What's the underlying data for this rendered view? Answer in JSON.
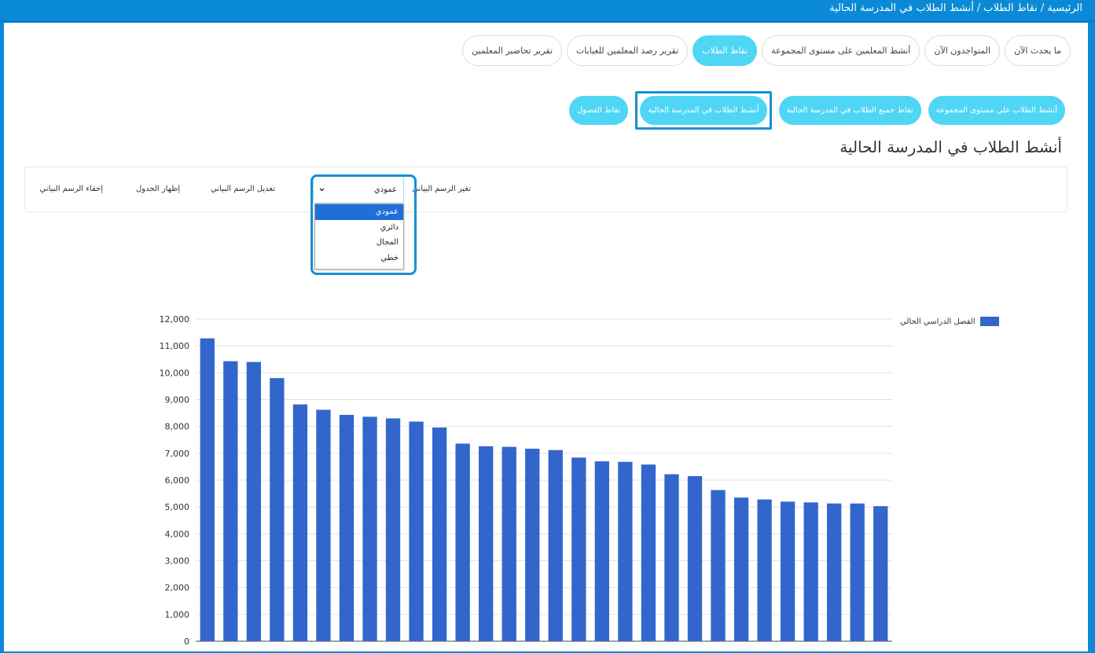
{
  "breadcrumb": {
    "home": "الرئيسية",
    "sep": "/",
    "points": "نقاط الطلاب",
    "current": "أنشط الطلاب في المدرسة الحالية"
  },
  "tabs": [
    {
      "label": "ما يحدث الآن",
      "active": false
    },
    {
      "label": "المتواجدون الآن",
      "active": false
    },
    {
      "label": "أنشط المعلمين على مستوى المجموعة",
      "active": false
    },
    {
      "label": "نقاط الطلاب",
      "active": true
    },
    {
      "label": "تقرير رصد المعلمين للغيابات",
      "active": false
    },
    {
      "label": "تقرير تحاضير المعلمين",
      "active": false
    }
  ],
  "subtabs": [
    {
      "label": "أنشط الطلاب على مستوى المجموعة",
      "highlighted": false
    },
    {
      "label": "نقاط جميع الطلاب في المدرسة الحالية",
      "highlighted": false
    },
    {
      "label": "أنشط الطلاب في المدرسة الحالية",
      "highlighted": true
    },
    {
      "label": "نقاط الفصول",
      "highlighted": false
    }
  ],
  "page_title": "أنشط الطلاب في المدرسة الحالية",
  "toolbar": {
    "change_chart_label": "تغير الرسم البياني",
    "select_value": "عمودي",
    "edit_chart_label": "تعديل الرسم البياني",
    "show_table_label": "إظهار الجدول",
    "hide_chart_label": "إخفاء الرسم البياني"
  },
  "dropdown_options": [
    "عمودي",
    "دائري",
    "المجال",
    "خطي"
  ],
  "dropdown_selected_index": 0,
  "colors": {
    "accent": "#4fd6f5",
    "frame": "#0a8ad6",
    "bar": "#3366cc",
    "selected_option": "#1f6fd6"
  },
  "chart_data": {
    "type": "bar",
    "series": [
      {
        "name": "الفصل الدراسي الحالي",
        "values": [
          11280,
          10430,
          10400,
          9800,
          8820,
          8620,
          8430,
          8360,
          8300,
          8180,
          7960,
          7360,
          7260,
          7240,
          7170,
          7120,
          6840,
          6700,
          6680,
          6580,
          6220,
          6150,
          5630,
          5350,
          5280,
          5200,
          5170,
          5130,
          5130,
          5030
        ]
      }
    ],
    "yticks": [
      "0",
      "1,000",
      "2,000",
      "3,000",
      "4,000",
      "5,000",
      "6,000",
      "7,000",
      "8,000",
      "9,000",
      "10,000",
      "11,000",
      "12,000"
    ],
    "ylim": [
      0,
      12000
    ],
    "grid": true,
    "legend_position": "top-right"
  }
}
